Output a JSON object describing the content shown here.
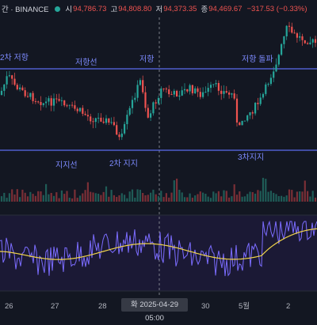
{
  "header": {
    "symbol": "간 · BINANCE",
    "open_label": "시",
    "open": "94,786.73",
    "high_label": "고",
    "high": "94,808.80",
    "low_label": "저",
    "low": "94,373.35",
    "close_label": "종",
    "close": "94,469.67",
    "change": "−317.53 (−0.33%)"
  },
  "annotations": {
    "resistance_2": "2차 저항",
    "resistance_line": "저항선",
    "resistance": "저항",
    "resistance_break": "저항 돌파",
    "support_line": "지지선",
    "support_2": "2차 지지",
    "support_3": "3차지지"
  },
  "time_axis": {
    "labels": [
      "26",
      "27",
      "28",
      "30",
      "5월",
      "2"
    ],
    "crosshair": "화 2025-04-29  05:00"
  },
  "colors": {
    "background": "#131722",
    "up": "#26a69a",
    "down": "#ef5350",
    "level_line": "#5b6cf0",
    "oscillator_fast": "#7b6cff",
    "oscillator_slow": "#f0d44a",
    "oscillator_bg": "#1b1935"
  },
  "chart_data": {
    "type": "candlestick",
    "levels": [
      {
        "name": "저항선",
        "y": 87
      },
      {
        "name": "지지선",
        "y": 190
      }
    ],
    "price": {
      "open": 94786.73,
      "high": 94808.8,
      "low": 94373.35,
      "close": 94469.67,
      "change": -317.53,
      "change_pct": -0.33
    },
    "x_ticks": [
      "26",
      "27",
      "28",
      "29",
      "30",
      "5월",
      "2"
    ],
    "panels": [
      "price",
      "volume",
      "oscillator"
    ]
  }
}
